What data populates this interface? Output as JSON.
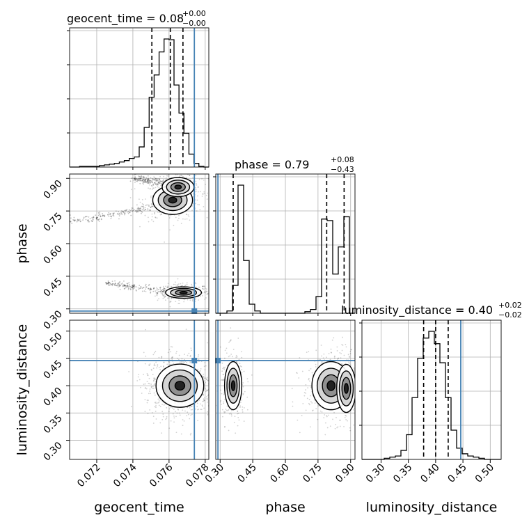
{
  "chart_data": {
    "type": "corner",
    "parameters": [
      {
        "name": "geocent_time",
        "axis_label": "geocent_time",
        "title": {
          "prefix": "geocent_time = ",
          "value": "0.08",
          "plus": "+0.00",
          "minus": "−0.00"
        },
        "range": [
          0.0705,
          0.0782
        ],
        "ticks": [
          0.072,
          0.074,
          0.076,
          0.078
        ],
        "tick_labels": [
          "0.072",
          "0.074",
          "0.076",
          "0.078"
        ],
        "quantiles": [
          0.07505,
          0.07607,
          0.07677
        ],
        "truth": 0.0774,
        "hist_edges_range": [
          0.0705,
          0.0782
        ],
        "hist_counts": [
          0,
          0,
          1,
          1,
          1,
          1,
          2,
          3,
          4,
          5,
          7,
          9,
          12,
          14,
          28,
          55,
          97,
          128,
          160,
          178,
          177,
          114,
          75,
          47,
          18,
          5,
          1,
          0
        ]
      },
      {
        "name": "phase",
        "axis_label": "phase",
        "title": {
          "prefix": "phase = ",
          "value": "0.79",
          "plus": "+0.08",
          "minus": "−0.43"
        },
        "range": [
          0.28,
          0.92
        ],
        "ticks": [
          0.3,
          0.45,
          0.6,
          0.75,
          0.9
        ],
        "tick_labels": [
          "0.30",
          "0.45",
          "0.60",
          "0.75",
          "0.90"
        ],
        "quantiles": [
          0.36,
          0.79,
          0.87
        ],
        "truth": 0.29,
        "hist_edges_range": [
          0.28,
          0.92
        ],
        "hist_counts": [
          0,
          0,
          3,
          37,
          170,
          70,
          12,
          3,
          0,
          0,
          0,
          0,
          0,
          0,
          0,
          0,
          2,
          5,
          22,
          125,
          123,
          52,
          88,
          128,
          0
        ]
      },
      {
        "name": "luminosity_distance",
        "axis_label": "luminosity_distance",
        "title": {
          "prefix": "luminosity_distance = ",
          "value": "0.40",
          "plus": "+0.02",
          "minus": "−0.02"
        },
        "range": [
          0.265,
          0.52
        ],
        "ticks": [
          0.3,
          0.35,
          0.4,
          0.45,
          0.5
        ],
        "tick_labels": [
          "0.30",
          "0.35",
          "0.40",
          "0.45",
          "0.50"
        ],
        "quantiles": [
          0.378,
          0.4,
          0.423
        ],
        "truth": 0.446,
        "hist_edges_range": [
          0.265,
          0.52
        ],
        "hist_counts": [
          0,
          0,
          0,
          0,
          1,
          2,
          3,
          8,
          22,
          55,
          90,
          108,
          114,
          103,
          86,
          55,
          26,
          10,
          5,
          3,
          2,
          1,
          0,
          0,
          0
        ]
      }
    ],
    "truth_color": "#4682b4",
    "pairs": [
      {
        "x": "geocent_time",
        "y": "phase",
        "clusters": [
          {
            "cx": 0.0768,
            "cy": 0.375,
            "sx": 0.00045,
            "sy": 0.012,
            "w": 0.45
          },
          {
            "cx": 0.0762,
            "cy": 0.8,
            "sx": 0.0005,
            "sy": 0.03,
            "w": 0.4
          },
          {
            "cx": 0.0765,
            "cy": 0.86,
            "sx": 0.0004,
            "sy": 0.02,
            "w": 0.25
          }
        ],
        "streaks": [
          {
            "x0": 0.0705,
            "y0": 0.7,
            "x1": 0.076,
            "y1": 0.78
          },
          {
            "x0": 0.0725,
            "y0": 0.42,
            "x1": 0.0768,
            "y1": 0.37
          },
          {
            "x0": 0.074,
            "y0": 0.9,
            "x1": 0.0765,
            "y1": 0.87
          }
        ]
      },
      {
        "x": "geocent_time",
        "y": "luminosity_distance",
        "clusters": [
          {
            "cx": 0.0766,
            "cy": 0.4,
            "sx": 0.0006,
            "sy": 0.018,
            "w": 1.0
          }
        ],
        "streaks": []
      },
      {
        "x": "phase",
        "y": "luminosity_distance",
        "clusters": [
          {
            "cx": 0.36,
            "cy": 0.4,
            "sx": 0.018,
            "sy": 0.02,
            "w": 0.35
          },
          {
            "cx": 0.81,
            "cy": 0.4,
            "sx": 0.04,
            "sy": 0.02,
            "w": 0.45
          },
          {
            "cx": 0.88,
            "cy": 0.395,
            "sx": 0.02,
            "sy": 0.02,
            "w": 0.2
          }
        ],
        "streaks": []
      }
    ]
  }
}
